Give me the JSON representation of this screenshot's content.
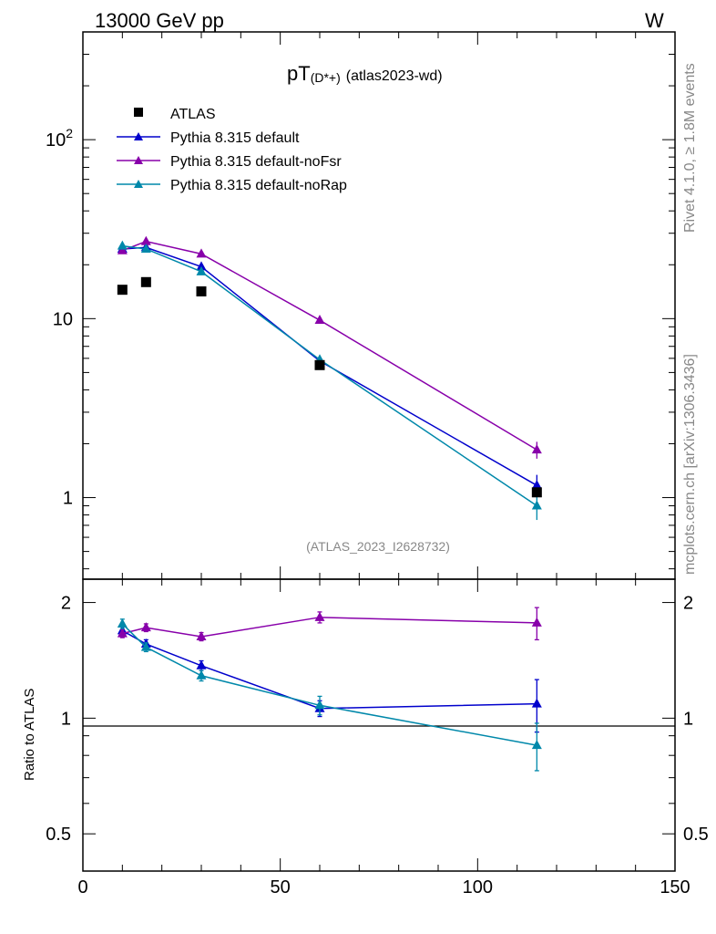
{
  "header": {
    "left": "13000 GeV pp",
    "right": "W"
  },
  "chart_data": {
    "type": "line",
    "title_main": "pT",
    "title_sub": "(D*+)",
    "title_tail": "(atlas2023-wd)",
    "analysis_tag": "(ATLAS_2023_I2628732)",
    "side_label_rivet": "Rivet 4.1.0, ≥ 1.8M events",
    "side_label_mcplots": "mcplots.cern.ch [arXiv:1306.3436]",
    "ratio_ylabel": "Ratio to ATLAS",
    "xlim": [
      0,
      150
    ],
    "ylim_main": [
      0.35,
      400
    ],
    "ylim_ratio": [
      0.4,
      2.3
    ],
    "x_ticks": [
      0,
      50,
      100,
      150
    ],
    "main_y_ticks": [
      "1",
      "10",
      "10^2"
    ],
    "ratio_y_ticks": [
      "0.5",
      "1",
      "2"
    ],
    "legend": [
      "ATLAS",
      "Pythia 8.315 default",
      "Pythia 8.315 default-noFsr",
      "Pythia 8.315 default-noRap"
    ],
    "data": {
      "name": "ATLAS",
      "x": [
        10,
        16,
        30,
        60,
        115
      ],
      "y": [
        14.5,
        16,
        14.2,
        5.5,
        1.07
      ],
      "color": "#000000"
    },
    "series": [
      {
        "name": "Pythia 8.315 default",
        "color": "#0000cc",
        "x": [
          10,
          16,
          30,
          60,
          115
        ],
        "y": [
          24.5,
          25.0,
          19.5,
          5.8,
          1.17
        ],
        "err": [
          0.5,
          0.5,
          0.4,
          0.25,
          0.17
        ],
        "ratio": [
          1.69,
          1.56,
          1.37,
          1.06,
          1.09
        ],
        "ratio_err": [
          0.04,
          0.04,
          0.04,
          0.05,
          0.17
        ]
      },
      {
        "name": "Pythia 8.315 default-noFsr",
        "color": "#8800aa",
        "x": [
          10,
          16,
          30,
          60,
          115
        ],
        "y": [
          24.0,
          27.0,
          23.0,
          9.8,
          1.85
        ],
        "err": [
          0.5,
          0.5,
          0.4,
          0.3,
          0.2
        ],
        "ratio": [
          1.66,
          1.72,
          1.63,
          1.83,
          1.77
        ],
        "ratio_err": [
          0.04,
          0.04,
          0.04,
          0.06,
          0.17
        ]
      },
      {
        "name": "Pythia 8.315 default-noRap",
        "color": "#0088aa",
        "x": [
          10,
          16,
          30,
          60,
          115
        ],
        "y": [
          25.5,
          24.5,
          18.3,
          5.9,
          0.9
        ],
        "err": [
          0.5,
          0.5,
          0.4,
          0.3,
          0.15
        ],
        "ratio": [
          1.76,
          1.53,
          1.29,
          1.08,
          0.85
        ],
        "ratio_err": [
          0.05,
          0.04,
          0.04,
          0.06,
          0.12
        ]
      }
    ]
  }
}
